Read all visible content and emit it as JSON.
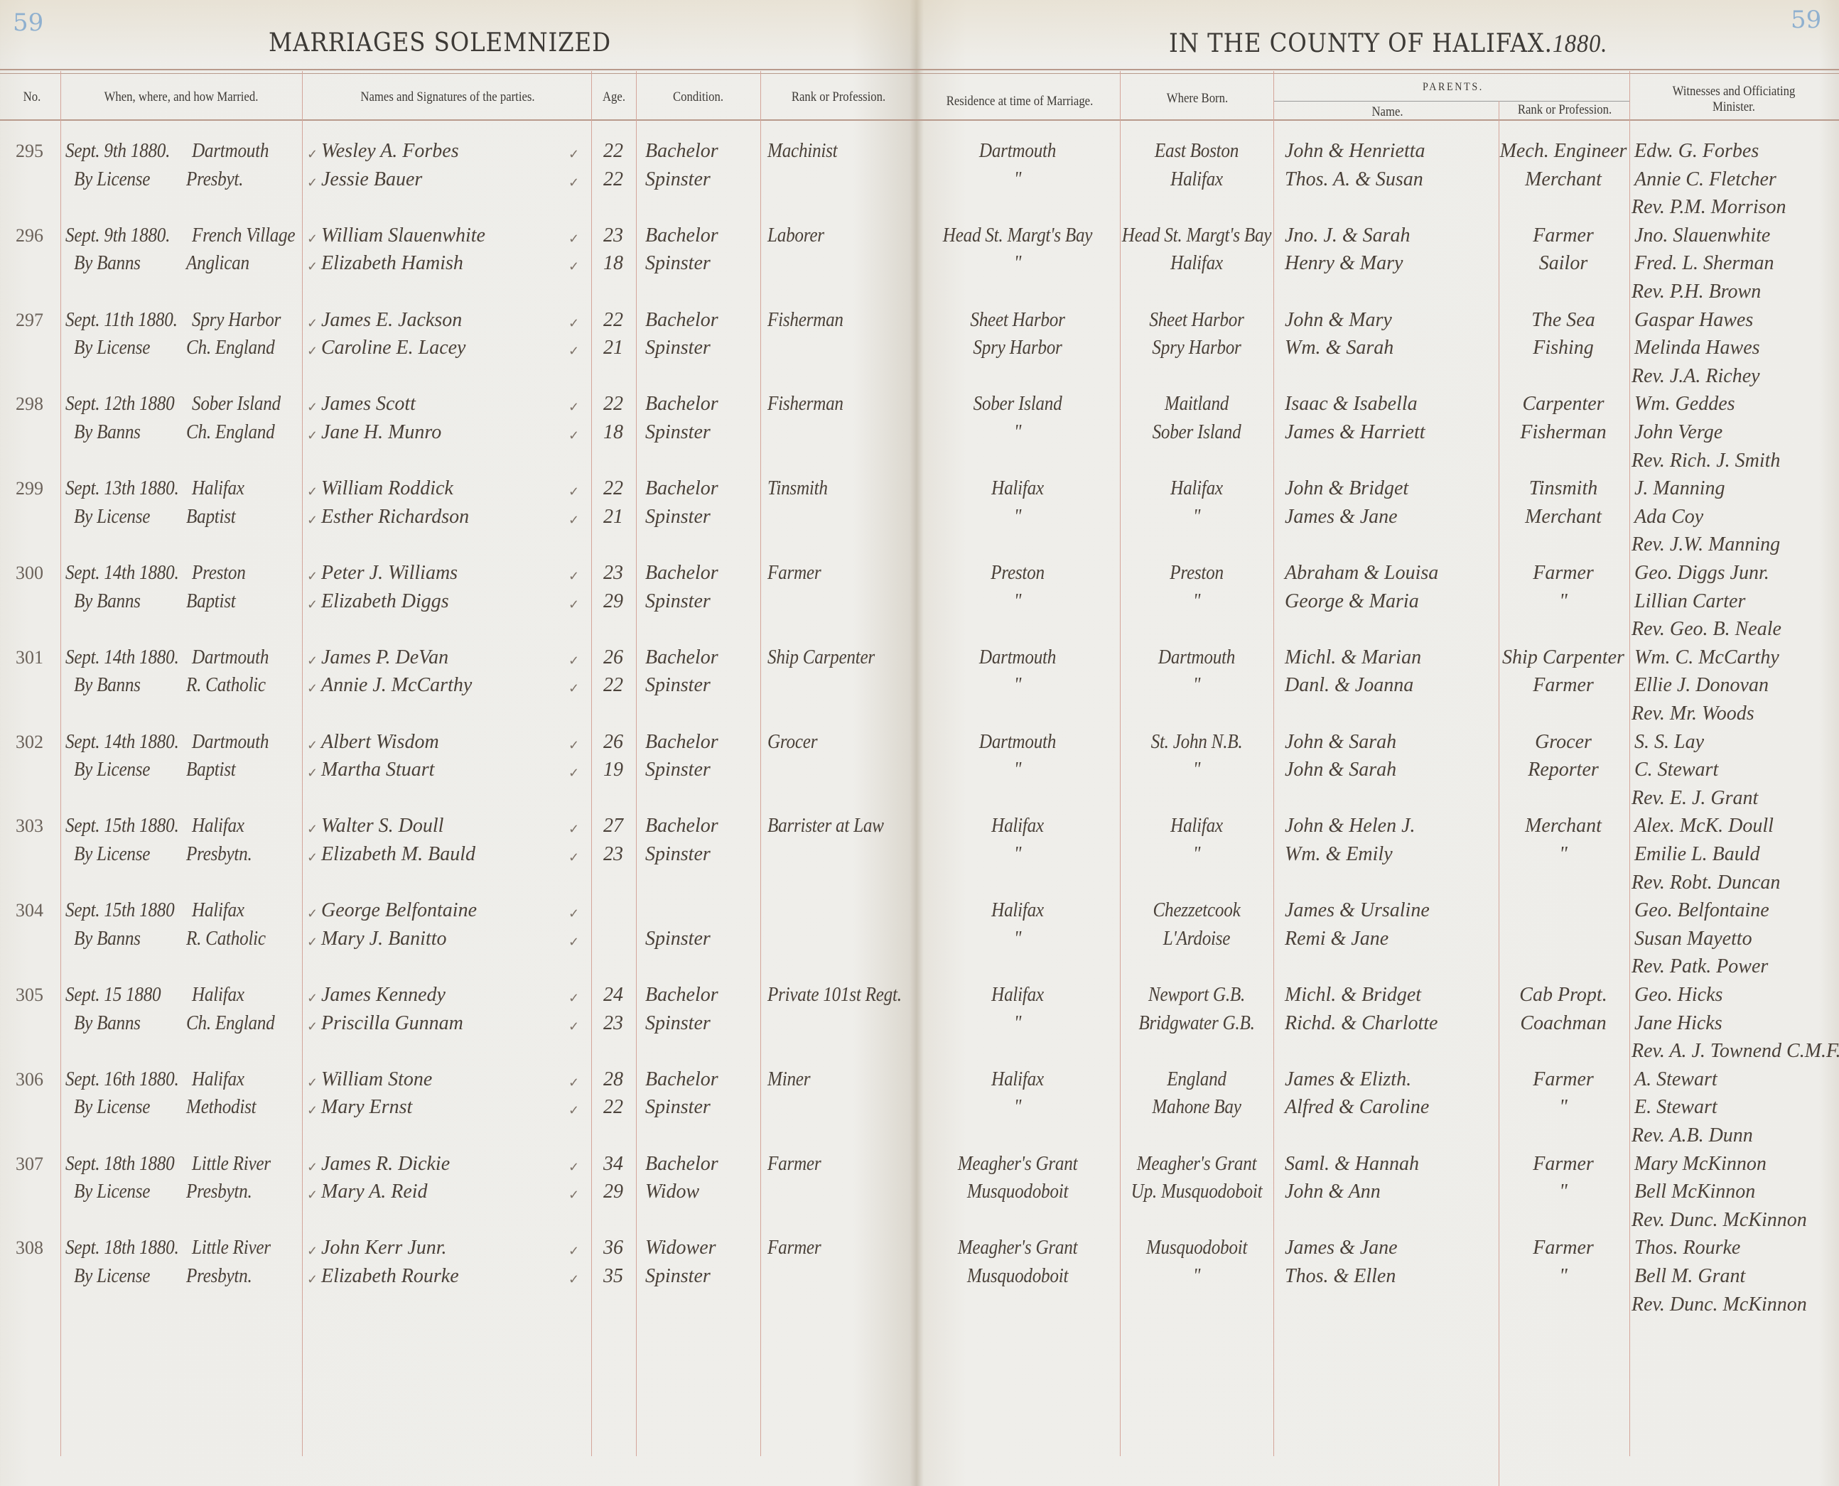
{
  "page_numbers": {
    "left": "59",
    "right": "59"
  },
  "title_left": "MARRIAGES SOLEMNIZED",
  "title_right": "IN THE COUNTY OF HALIFAX.",
  "title_year": "1880.",
  "headers": {
    "no": "No.",
    "when": "When, where, and how Married.",
    "names": "Names and Signatures of the parties.",
    "age": "Age.",
    "condition": "Condition.",
    "rank": "Rank or Profession.",
    "residence": "Residence at time of Marriage.",
    "born": "Where Born.",
    "parents": "PARENTS.",
    "parents_name": "Name.",
    "parents_rank": "Rank or Profession.",
    "witnesses": "Witnesses and Officiating Minister."
  },
  "check_mark": "✓",
  "entries": [
    {
      "no": "295",
      "date": "Sept. 9th 1880.",
      "place": "Dartmouth",
      "method": "By License",
      "denomination": "Presbyt.",
      "groom": {
        "name": "Wesley A. Forbes",
        "age": "22",
        "condition": "Bachelor",
        "profession": "Machinist",
        "residence": "Dartmouth",
        "born": "East Boston",
        "parents": "John & Henrietta",
        "parents_rank": "Mech. Engineer"
      },
      "bride": {
        "name": "Jessie Bauer",
        "age": "22",
        "condition": "Spinster",
        "profession": "",
        "residence": "\"",
        "born": "Halifax",
        "parents": "Thos. A. & Susan",
        "parents_rank": "Merchant"
      },
      "witnesses": [
        "Edw. G. Forbes",
        "Annie C. Fletcher"
      ],
      "minister": "Rev. P.M. Morrison"
    },
    {
      "no": "296",
      "date": "Sept. 9th 1880.",
      "place": "French Village",
      "method": "By Banns",
      "denomination": "Anglican",
      "groom": {
        "name": "William Slauenwhite",
        "age": "23",
        "condition": "Bachelor",
        "profession": "Laborer",
        "residence": "Head St. Margt's Bay",
        "born": "Head St. Margt's Bay",
        "parents": "Jno. J. & Sarah",
        "parents_rank": "Farmer"
      },
      "bride": {
        "name": "Elizabeth Hamish",
        "age": "18",
        "condition": "Spinster",
        "profession": "",
        "residence": "\"",
        "born": "Halifax",
        "parents": "Henry & Mary",
        "parents_rank": "Sailor"
      },
      "witnesses": [
        "Jno. Slauenwhite",
        "Fred. L. Sherman"
      ],
      "minister": "Rev. P.H. Brown"
    },
    {
      "no": "297",
      "date": "Sept. 11th 1880.",
      "place": "Spry Harbor",
      "method": "By License",
      "denomination": "Ch. England",
      "groom": {
        "name": "James E. Jackson",
        "age": "22",
        "condition": "Bachelor",
        "profession": "Fisherman",
        "residence": "Sheet Harbor",
        "born": "Sheet Harbor",
        "parents": "John & Mary",
        "parents_rank": "The Sea"
      },
      "bride": {
        "name": "Caroline E. Lacey",
        "age": "21",
        "condition": "Spinster",
        "profession": "",
        "residence": "Spry Harbor",
        "born": "Spry Harbor",
        "parents": "Wm. & Sarah",
        "parents_rank": "Fishing"
      },
      "witnesses": [
        "Gaspar Hawes",
        "Melinda Hawes"
      ],
      "minister": "Rev. J.A. Richey"
    },
    {
      "no": "298",
      "date": "Sept. 12th 1880",
      "place": "Sober Island",
      "method": "By Banns",
      "denomination": "Ch. England",
      "groom": {
        "name": "James Scott",
        "age": "22",
        "condition": "Bachelor",
        "profession": "Fisherman",
        "residence": "Sober Island",
        "born": "Maitland",
        "parents": "Isaac & Isabella",
        "parents_rank": "Carpenter"
      },
      "bride": {
        "name": "Jane H. Munro",
        "age": "18",
        "condition": "Spinster",
        "profession": "",
        "residence": "\"",
        "born": "Sober Island",
        "parents": "James & Harriett",
        "parents_rank": "Fisherman"
      },
      "witnesses": [
        "Wm. Geddes",
        "John Verge"
      ],
      "minister": "Rev. Rich. J. Smith"
    },
    {
      "no": "299",
      "date": "Sept. 13th 1880.",
      "place": "Halifax",
      "method": "By License",
      "denomination": "Baptist",
      "groom": {
        "name": "William Roddick",
        "age": "22",
        "condition": "Bachelor",
        "profession": "Tinsmith",
        "residence": "Halifax",
        "born": "Halifax",
        "parents": "John & Bridget",
        "parents_rank": "Tinsmith"
      },
      "bride": {
        "name": "Esther Richardson",
        "age": "21",
        "condition": "Spinster",
        "profession": "",
        "residence": "\"",
        "born": "\"",
        "parents": "James & Jane",
        "parents_rank": "Merchant"
      },
      "witnesses": [
        "J. Manning",
        "Ada Coy"
      ],
      "minister": "Rev. J.W. Manning"
    },
    {
      "no": "300",
      "date": "Sept. 14th 1880.",
      "place": "Preston",
      "method": "By Banns",
      "denomination": "Baptist",
      "groom": {
        "name": "Peter J. Williams",
        "age": "23",
        "condition": "Bachelor",
        "profession": "Farmer",
        "residence": "Preston",
        "born": "Preston",
        "parents": "Abraham & Louisa",
        "parents_rank": "Farmer"
      },
      "bride": {
        "name": "Elizabeth Diggs",
        "age": "29",
        "condition": "Spinster",
        "profession": "",
        "residence": "\"",
        "born": "\"",
        "parents": "George & Maria",
        "parents_rank": "\""
      },
      "witnesses": [
        "Geo. Diggs Junr.",
        "Lillian Carter"
      ],
      "minister": "Rev. Geo. B. Neale"
    },
    {
      "no": "301",
      "date": "Sept. 14th 1880.",
      "place": "Dartmouth",
      "method": "By Banns",
      "denomination": "R. Catholic",
      "groom": {
        "name": "James P. DeVan",
        "age": "26",
        "condition": "Bachelor",
        "profession": "Ship Carpenter",
        "residence": "Dartmouth",
        "born": "Dartmouth",
        "parents": "Michl. & Marian",
        "parents_rank": "Ship Carpenter"
      },
      "bride": {
        "name": "Annie J. McCarthy",
        "age": "22",
        "condition": "Spinster",
        "profession": "",
        "residence": "\"",
        "born": "\"",
        "parents": "Danl. & Joanna",
        "parents_rank": "Farmer"
      },
      "witnesses": [
        "Wm. C. McCarthy",
        "Ellie J. Donovan"
      ],
      "minister": "Rev. Mr. Woods"
    },
    {
      "no": "302",
      "date": "Sept. 14th 1880.",
      "place": "Dartmouth",
      "method": "By License",
      "denomination": "Baptist",
      "groom": {
        "name": "Albert Wisdom",
        "age": "26",
        "condition": "Bachelor",
        "profession": "Grocer",
        "residence": "Dartmouth",
        "born": "St. John N.B.",
        "parents": "John & Sarah",
        "parents_rank": "Grocer"
      },
      "bride": {
        "name": "Martha Stuart",
        "age": "19",
        "condition": "Spinster",
        "profession": "",
        "residence": "\"",
        "born": "\"",
        "parents": "John & Sarah",
        "parents_rank": "Reporter"
      },
      "witnesses": [
        "S. S. Lay",
        "C. Stewart"
      ],
      "minister": "Rev. E. J. Grant"
    },
    {
      "no": "303",
      "date": "Sept. 15th 1880.",
      "place": "Halifax",
      "method": "By License",
      "denomination": "Presbytn.",
      "groom": {
        "name": "Walter S. Doull",
        "age": "27",
        "condition": "Bachelor",
        "profession": "Barrister at Law",
        "residence": "Halifax",
        "born": "Halifax",
        "parents": "John & Helen J.",
        "parents_rank": "Merchant"
      },
      "bride": {
        "name": "Elizabeth M. Bauld",
        "age": "23",
        "condition": "Spinster",
        "profession": "",
        "residence": "\"",
        "born": "\"",
        "parents": "Wm. & Emily",
        "parents_rank": "\""
      },
      "witnesses": [
        "Alex. McK. Doull",
        "Emilie L. Bauld"
      ],
      "minister": "Rev. Robt. Duncan"
    },
    {
      "no": "304",
      "date": "Sept. 15th 1880",
      "place": "Halifax",
      "method": "By Banns",
      "denomination": "R. Catholic",
      "groom": {
        "name": "George Belfontaine",
        "age": "",
        "condition": "",
        "profession": "",
        "residence": "Halifax",
        "born": "Chezzetcook",
        "parents": "James & Ursaline",
        "parents_rank": ""
      },
      "bride": {
        "name": "Mary J. Banitto",
        "age": "",
        "condition": "Spinster",
        "profession": "",
        "residence": "\"",
        "born": "L'Ardoise",
        "parents": "Remi & Jane",
        "parents_rank": ""
      },
      "witnesses": [
        "Geo. Belfontaine",
        "Susan Mayetto"
      ],
      "minister": "Rev. Patk. Power"
    },
    {
      "no": "305",
      "date": "Sept. 15 1880",
      "place": "Halifax",
      "method": "By Banns",
      "denomination": "Ch. England",
      "groom": {
        "name": "James Kennedy",
        "age": "24",
        "condition": "Bachelor",
        "profession": "Private 101st Regt.",
        "residence": "Halifax",
        "born": "Newport G.B.",
        "parents": "Michl. & Bridget",
        "parents_rank": "Cab Propt."
      },
      "bride": {
        "name": "Priscilla Gunnam",
        "age": "23",
        "condition": "Spinster",
        "profession": "",
        "residence": "\"",
        "born": "Bridgwater G.B.",
        "parents": "Richd. & Charlotte",
        "parents_rank": "Coachman"
      },
      "witnesses": [
        "Geo. Hicks",
        "Jane Hicks"
      ],
      "minister": "Rev. A. J. Townend C.M.F."
    },
    {
      "no": "306",
      "date": "Sept. 16th 1880.",
      "place": "Halifax",
      "method": "By License",
      "denomination": "Methodist",
      "groom": {
        "name": "William Stone",
        "age": "28",
        "condition": "Bachelor",
        "profession": "Miner",
        "residence": "Halifax",
        "born": "England",
        "parents": "James & Elizth.",
        "parents_rank": "Farmer"
      },
      "bride": {
        "name": "Mary Ernst",
        "age": "22",
        "condition": "Spinster",
        "profession": "",
        "residence": "\"",
        "born": "Mahone Bay",
        "parents": "Alfred & Caroline",
        "parents_rank": "\""
      },
      "witnesses": [
        "A. Stewart",
        "E. Stewart"
      ],
      "minister": "Rev. A.B. Dunn"
    },
    {
      "no": "307",
      "date": "Sept. 18th 1880",
      "place": "Little River",
      "method": "By License",
      "denomination": "Presbytn.",
      "groom": {
        "name": "James R. Dickie",
        "age": "34",
        "condition": "Bachelor",
        "profession": "Farmer",
        "residence": "Meagher's Grant",
        "born": "Meagher's Grant",
        "parents": "Saml. & Hannah",
        "parents_rank": "Farmer"
      },
      "bride": {
        "name": "Mary A. Reid",
        "age": "29",
        "condition": "Widow",
        "profession": "",
        "residence": "Musquodoboit",
        "born": "Up. Musquodoboit",
        "parents": "John & Ann",
        "parents_rank": "\""
      },
      "witnesses": [
        "Mary McKinnon",
        "Bell McKinnon"
      ],
      "minister": "Rev. Dunc. McKinnon"
    },
    {
      "no": "308",
      "date": "Sept. 18th 1880.",
      "place": "Little River",
      "method": "By License",
      "denomination": "Presbytn.",
      "groom": {
        "name": "John Kerr Junr.",
        "age": "36",
        "condition": "Widower",
        "profession": "Farmer",
        "residence": "Meagher's Grant",
        "born": "Musquodoboit",
        "parents": "James & Jane",
        "parents_rank": "Farmer"
      },
      "bride": {
        "name": "Elizabeth Rourke",
        "age": "35",
        "condition": "Spinster",
        "profession": "",
        "residence": "Musquodoboit",
        "born": "\"",
        "parents": "Thos. & Ellen",
        "parents_rank": "\""
      },
      "witnesses": [
        "Thos. Rourke",
        "Bell M. Grant"
      ],
      "minister": "Rev. Dunc. McKinnon"
    }
  ]
}
